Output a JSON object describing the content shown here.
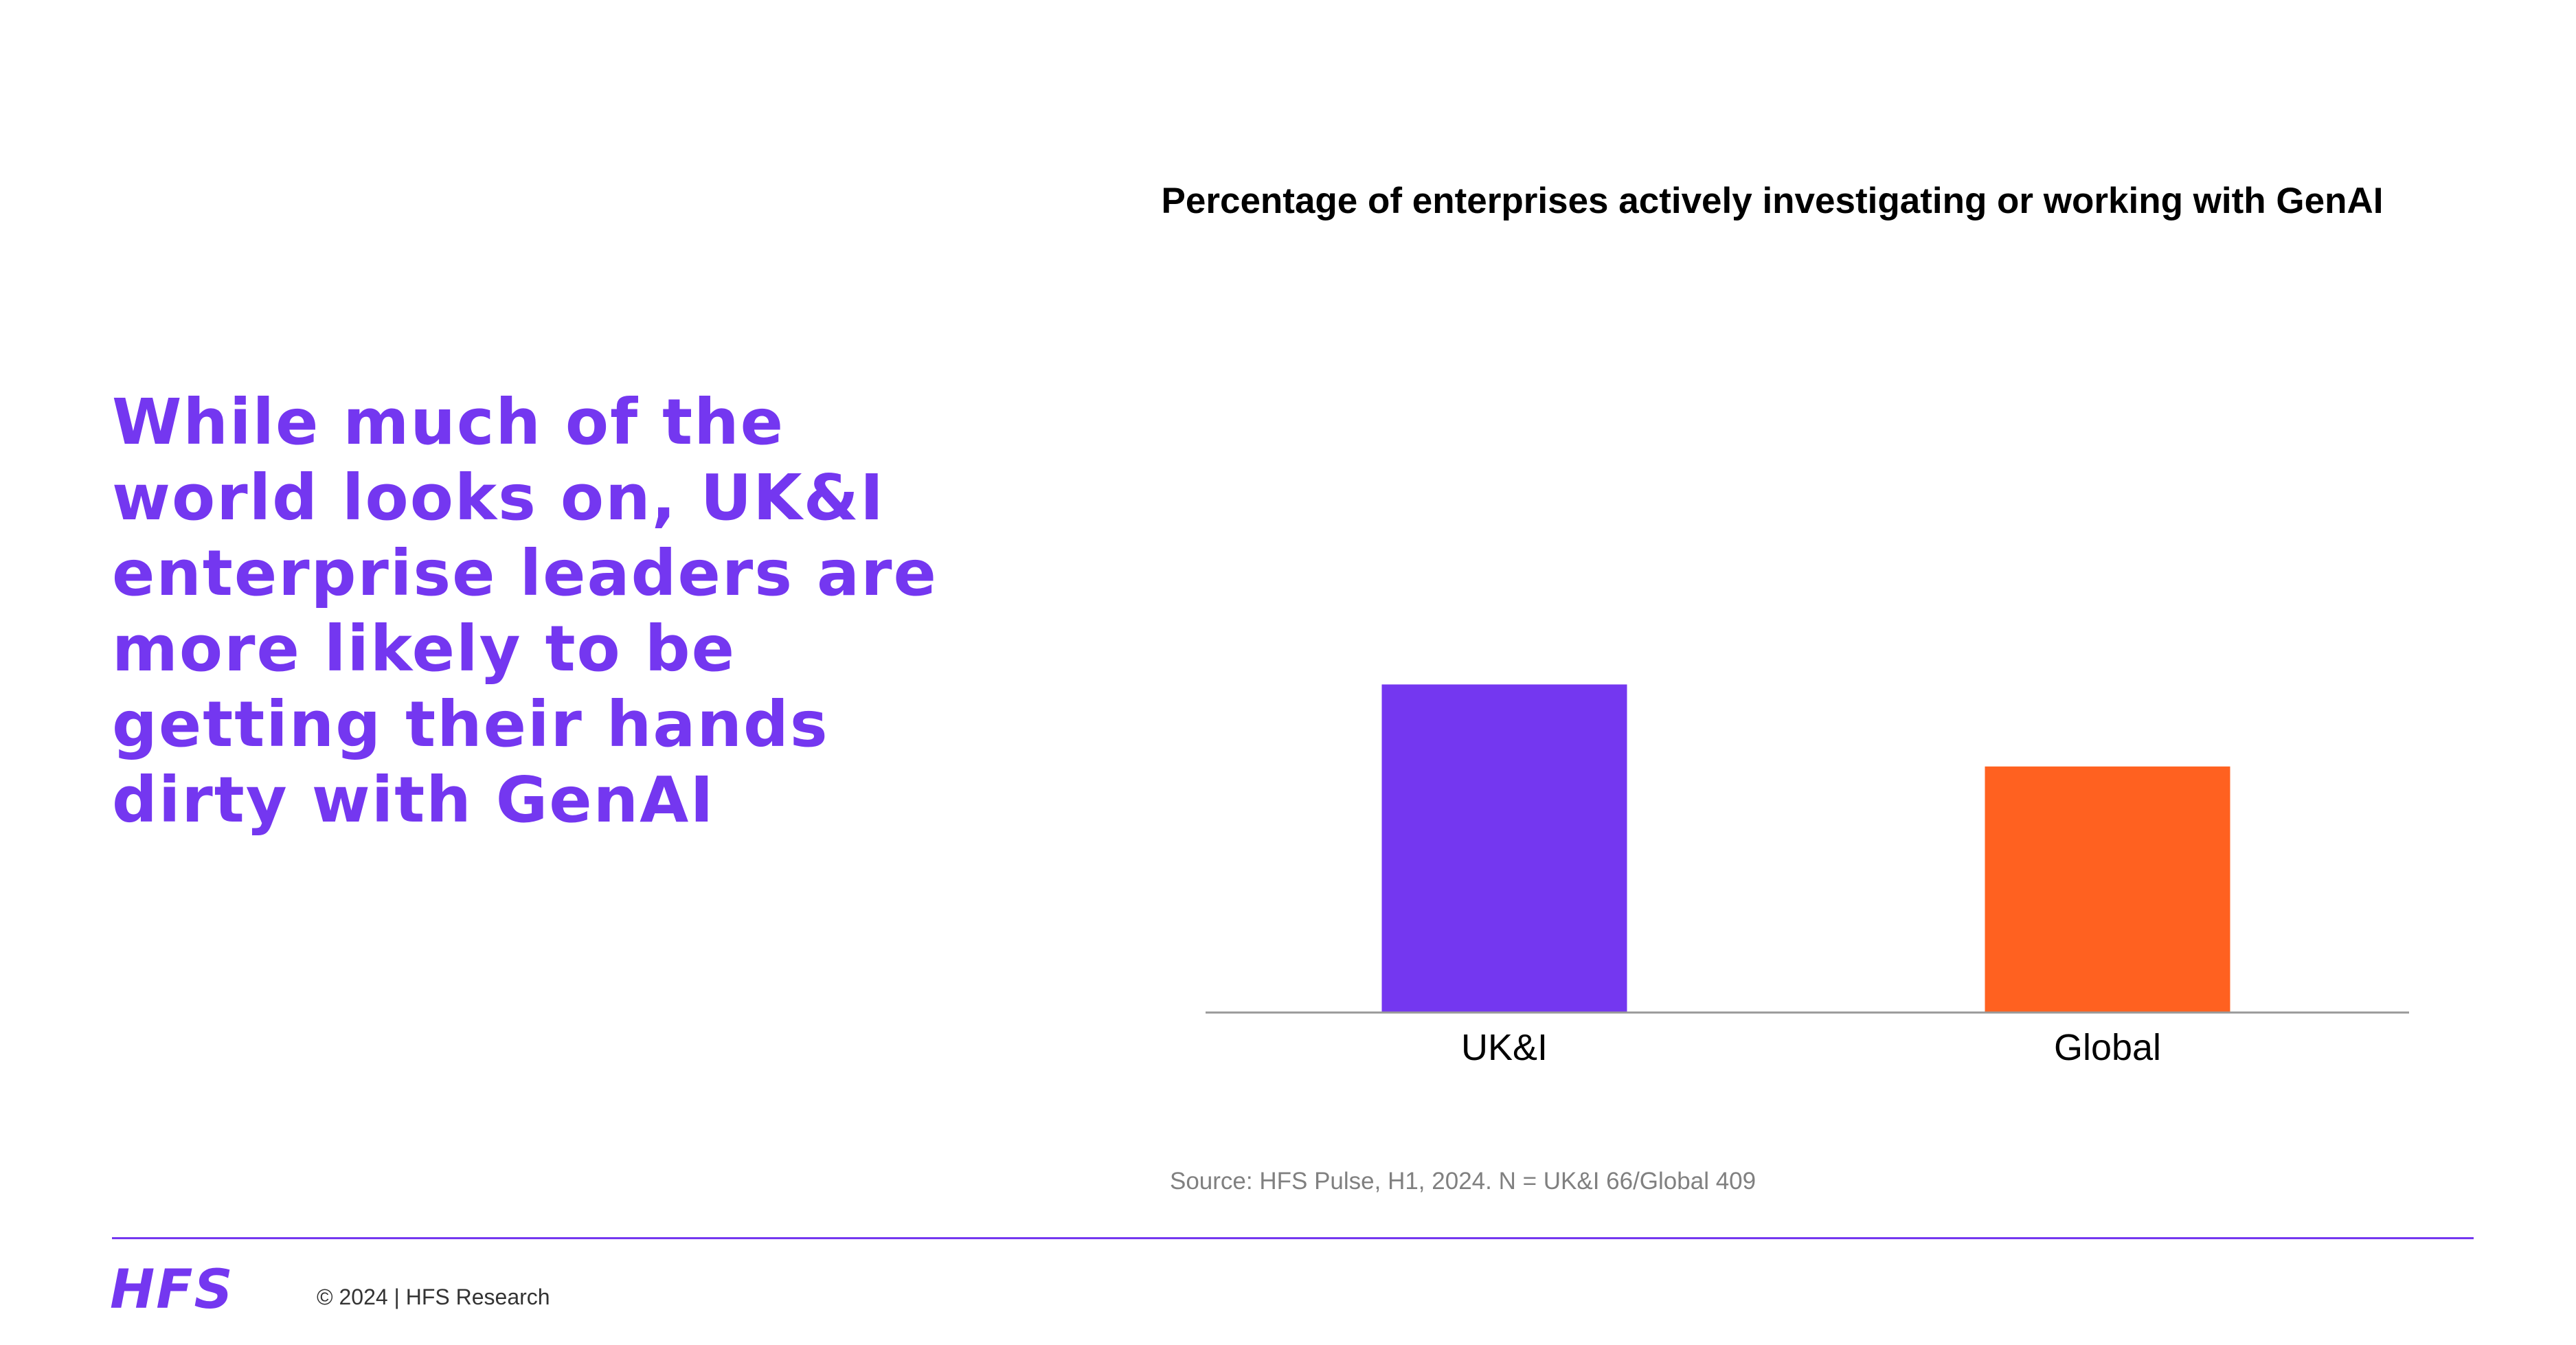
{
  "slide": {
    "headline": "While much of the world looks on, UK&I enterprise leaders are more likely to be getting their hands dirty with GenAI",
    "source": "Source: HFS Pulse, H1, 2024. N = UK&I 66/Global 409",
    "logo_text": "HFS",
    "copyright": "© 2024 | HFS Research",
    "accent_color": "#7437F0"
  },
  "chart_data": {
    "type": "bar",
    "title": "Percentage of enterprises actively investigating or working with GenAI",
    "categories": [
      "UK&I",
      "Global"
    ],
    "values": [
      80,
      60
    ],
    "colors": [
      "#7437F0",
      "#FF6120"
    ],
    "ylim": [
      0,
      100
    ],
    "grid": false,
    "xlabel": "",
    "ylabel": ""
  }
}
